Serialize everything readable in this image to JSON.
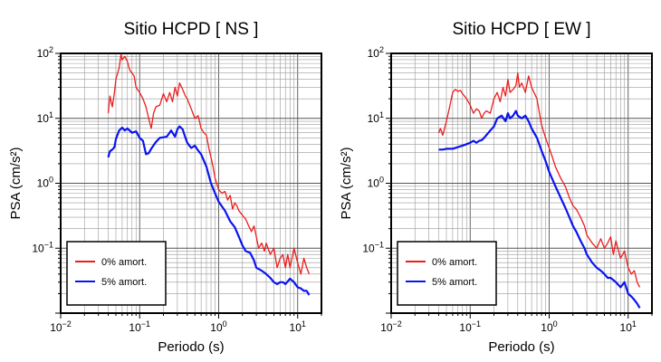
{
  "chart_data": [
    {
      "type": "line",
      "title": "Sitio HCPD [ NS ]",
      "xlabel": "Periodo (s)",
      "ylabel": "PSA (cm/s²)",
      "x_scale": "log",
      "y_scale": "log",
      "xlim": [
        0.01,
        20
      ],
      "ylim": [
        0.01,
        100
      ],
      "x_ticks": [
        {
          "base": "10",
          "exp": "−2",
          "value": 0.01
        },
        {
          "base": "10",
          "exp": "−1",
          "value": 0.1
        },
        {
          "base": "10",
          "exp": "0",
          "value": 1
        },
        {
          "base": "10",
          "exp": "1",
          "value": 10
        }
      ],
      "y_ticks": [
        {
          "base": "10",
          "exp": "−1",
          "value": 0.1
        },
        {
          "base": "10",
          "exp": "0",
          "value": 1
        },
        {
          "base": "10",
          "exp": "1",
          "value": 10
        },
        {
          "base": "10",
          "exp": "2",
          "value": 100
        }
      ],
      "grid": true,
      "legend_position": "bottom-left",
      "series": [
        {
          "name": "0% amort.",
          "color": "#ee1c1c",
          "x": [
            0.04,
            0.042,
            0.045,
            0.048,
            0.05,
            0.055,
            0.058,
            0.06,
            0.065,
            0.07,
            0.075,
            0.08,
            0.085,
            0.09,
            0.1,
            0.11,
            0.12,
            0.13,
            0.14,
            0.15,
            0.16,
            0.18,
            0.2,
            0.22,
            0.24,
            0.26,
            0.28,
            0.3,
            0.32,
            0.35,
            0.38,
            0.4,
            0.45,
            0.5,
            0.55,
            0.6,
            0.65,
            0.7,
            0.75,
            0.8,
            0.85,
            0.9,
            1.0,
            1.1,
            1.2,
            1.3,
            1.4,
            1.5,
            1.6,
            1.7,
            1.8,
            2.0,
            2.2,
            2.4,
            2.6,
            2.8,
            3.0,
            3.2,
            3.5,
            3.8,
            4.0,
            4.5,
            5.0,
            5.5,
            6.0,
            6.5,
            7.0,
            7.5,
            8.0,
            9.0,
            10.0,
            11.0,
            12.0,
            13.0,
            14.0
          ],
          "y": [
            12,
            22,
            15,
            25,
            40,
            60,
            95,
            80,
            90,
            75,
            55,
            50,
            45,
            30,
            25,
            20,
            15,
            10,
            7,
            12,
            15,
            16,
            24,
            18,
            25,
            18,
            30,
            22,
            35,
            28,
            22,
            20,
            14,
            10,
            11,
            7,
            6,
            5.5,
            3.5,
            2.5,
            1.8,
            1.2,
            0.8,
            0.7,
            0.75,
            0.55,
            0.65,
            0.4,
            0.5,
            0.45,
            0.38,
            0.32,
            0.28,
            0.22,
            0.18,
            0.22,
            0.15,
            0.1,
            0.12,
            0.09,
            0.12,
            0.08,
            0.1,
            0.05,
            0.07,
            0.08,
            0.05,
            0.08,
            0.05,
            0.1,
            0.06,
            0.04,
            0.07,
            0.05,
            0.04
          ]
        },
        {
          "name": "5% amort.",
          "color": "#0a14ef",
          "x": [
            0.04,
            0.042,
            0.045,
            0.048,
            0.05,
            0.055,
            0.06,
            0.065,
            0.07,
            0.08,
            0.09,
            0.1,
            0.11,
            0.12,
            0.13,
            0.14,
            0.16,
            0.18,
            0.2,
            0.22,
            0.25,
            0.28,
            0.3,
            0.32,
            0.35,
            0.38,
            0.4,
            0.45,
            0.5,
            0.55,
            0.6,
            0.7,
            0.8,
            0.9,
            1.0,
            1.2,
            1.4,
            1.6,
            1.8,
            2.0,
            2.2,
            2.5,
            2.8,
            3.0,
            3.5,
            4.0,
            4.5,
            5.0,
            5.5,
            6.0,
            6.5,
            7.0,
            8.0,
            9.0,
            10.0,
            11.0,
            12.0,
            13.0,
            14.0
          ],
          "y": [
            2.5,
            3.1,
            3.3,
            3.6,
            4.8,
            6.5,
            7.2,
            6.5,
            7.0,
            6.0,
            6.3,
            5.0,
            4.5,
            2.8,
            2.9,
            3.4,
            4.3,
            5.0,
            5.1,
            5.2,
            6.5,
            5.2,
            6.8,
            7.5,
            6.8,
            5.0,
            4.2,
            3.5,
            3.8,
            3.2,
            2.8,
            1.8,
            1.0,
            0.7,
            0.52,
            0.38,
            0.26,
            0.21,
            0.15,
            0.11,
            0.09,
            0.085,
            0.065,
            0.05,
            0.045,
            0.04,
            0.035,
            0.03,
            0.028,
            0.03,
            0.03,
            0.028,
            0.034,
            0.03,
            0.025,
            0.024,
            0.022,
            0.022,
            0.019
          ]
        }
      ]
    },
    {
      "type": "line",
      "title": "Sitio HCPD [ EW ]",
      "xlabel": "Periodo (s)",
      "ylabel": "PSA (cm/s²)",
      "x_scale": "log",
      "y_scale": "log",
      "xlim": [
        0.01,
        20
      ],
      "ylim": [
        0.01,
        100
      ],
      "x_ticks": [
        {
          "base": "10",
          "exp": "−2",
          "value": 0.01
        },
        {
          "base": "10",
          "exp": "−1",
          "value": 0.1
        },
        {
          "base": "10",
          "exp": "0",
          "value": 1
        },
        {
          "base": "10",
          "exp": "1",
          "value": 10
        }
      ],
      "y_ticks": [
        {
          "base": "10",
          "exp": "−1",
          "value": 0.1
        },
        {
          "base": "10",
          "exp": "0",
          "value": 1
        },
        {
          "base": "10",
          "exp": "1",
          "value": 10
        },
        {
          "base": "10",
          "exp": "2",
          "value": 100
        }
      ],
      "grid": true,
      "legend_position": "bottom-left",
      "series": [
        {
          "name": "0% amort.",
          "color": "#ee1c1c",
          "x": [
            0.04,
            0.042,
            0.045,
            0.05,
            0.055,
            0.06,
            0.065,
            0.07,
            0.075,
            0.08,
            0.09,
            0.1,
            0.11,
            0.12,
            0.13,
            0.14,
            0.15,
            0.16,
            0.18,
            0.2,
            0.22,
            0.24,
            0.26,
            0.28,
            0.3,
            0.32,
            0.35,
            0.38,
            0.4,
            0.42,
            0.45,
            0.5,
            0.55,
            0.6,
            0.7,
            0.8,
            0.9,
            1.0,
            1.1,
            1.2,
            1.4,
            1.6,
            1.8,
            2.0,
            2.2,
            2.5,
            2.8,
            3.0,
            3.5,
            4.0,
            4.5,
            5.0,
            5.5,
            6.0,
            6.5,
            7.0,
            8.0,
            9.0,
            10.0,
            11.0,
            12.0,
            13.0,
            14.0
          ],
          "y": [
            6,
            7,
            5.5,
            9,
            15,
            25,
            28,
            26,
            27,
            24,
            20,
            16,
            12,
            14,
            13,
            10,
            12,
            13,
            12,
            20,
            25,
            18,
            30,
            22,
            40,
            25,
            28,
            32,
            50,
            30,
            35,
            25,
            45,
            30,
            20,
            8,
            5,
            3.5,
            2.5,
            1.8,
            1.2,
            0.9,
            0.6,
            0.45,
            0.4,
            0.3,
            0.22,
            0.16,
            0.12,
            0.1,
            0.14,
            0.1,
            0.12,
            0.15,
            0.08,
            0.13,
            0.07,
            0.09,
            0.05,
            0.04,
            0.045,
            0.03,
            0.025
          ]
        },
        {
          "name": "5% amort.",
          "color": "#0a14ef",
          "x": [
            0.04,
            0.045,
            0.05,
            0.06,
            0.07,
            0.08,
            0.09,
            0.1,
            0.11,
            0.12,
            0.13,
            0.14,
            0.15,
            0.16,
            0.18,
            0.2,
            0.22,
            0.25,
            0.28,
            0.3,
            0.32,
            0.35,
            0.38,
            0.4,
            0.45,
            0.5,
            0.55,
            0.6,
            0.7,
            0.8,
            0.9,
            1.0,
            1.2,
            1.4,
            1.6,
            1.8,
            2.0,
            2.2,
            2.5,
            2.8,
            3.0,
            3.5,
            4.0,
            4.5,
            5.0,
            5.5,
            6.0,
            7.0,
            8.0,
            9.0,
            10.0,
            11.0,
            12.0,
            13.0,
            14.0
          ],
          "y": [
            3.3,
            3.3,
            3.4,
            3.4,
            3.6,
            3.8,
            4.0,
            4.2,
            4.5,
            4.2,
            4.5,
            4.6,
            5.0,
            5.5,
            6.5,
            7.5,
            10,
            11,
            9,
            12,
            10,
            11,
            13,
            11,
            10,
            11,
            9,
            7,
            5,
            3.2,
            2.2,
            1.5,
            0.9,
            0.6,
            0.42,
            0.3,
            0.22,
            0.18,
            0.13,
            0.1,
            0.08,
            0.06,
            0.05,
            0.045,
            0.04,
            0.035,
            0.035,
            0.03,
            0.025,
            0.03,
            0.02,
            0.018,
            0.016,
            0.014,
            0.012
          ]
        }
      ]
    }
  ]
}
